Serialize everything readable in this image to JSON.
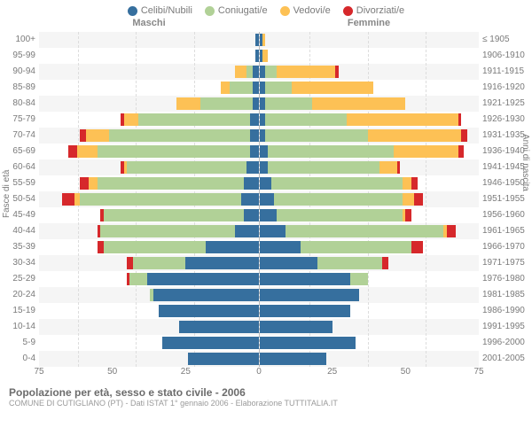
{
  "legend": {
    "items": [
      {
        "label": "Celibi/Nubili",
        "color": "#366f9e"
      },
      {
        "label": "Coniugati/e",
        "color": "#b1d197"
      },
      {
        "label": "Vedovi/e",
        "color": "#fdc155"
      },
      {
        "label": "Divorziati/e",
        "color": "#d6282b"
      }
    ]
  },
  "headers": {
    "male": "Maschi",
    "female": "Femmine"
  },
  "y_axis": {
    "left_title": "Fasce di età",
    "right_title": "Anni di nascita",
    "left_labels": [
      "100+",
      "95-99",
      "90-94",
      "85-89",
      "80-84",
      "75-79",
      "70-74",
      "65-69",
      "60-64",
      "55-59",
      "50-54",
      "45-49",
      "40-44",
      "35-39",
      "30-34",
      "25-29",
      "20-24",
      "15-19",
      "10-14",
      "5-9",
      "0-4"
    ],
    "right_labels": [
      "≤ 1905",
      "1906-1910",
      "1911-1915",
      "1916-1920",
      "1921-1925",
      "1926-1930",
      "1931-1935",
      "1936-1940",
      "1941-1945",
      "1946-1950",
      "1951-1955",
      "1956-1960",
      "1961-1965",
      "1966-1970",
      "1971-1975",
      "1976-1980",
      "1981-1985",
      "1986-1990",
      "1991-1995",
      "1996-2000",
      "2001-2005"
    ]
  },
  "x_axis": {
    "max": 75,
    "ticks": [
      75,
      50,
      25,
      0,
      25,
      50,
      75
    ]
  },
  "colors": {
    "celibi": "#366f9e",
    "coniugati": "#b1d197",
    "vedovi": "#fdc155",
    "divorziati": "#d6282b"
  },
  "data": {
    "male": [
      [
        1,
        0,
        0,
        0
      ],
      [
        1,
        0,
        0,
        0
      ],
      [
        2,
        2,
        4,
        0
      ],
      [
        2,
        8,
        3,
        0
      ],
      [
        2,
        18,
        8,
        0
      ],
      [
        3,
        38,
        5,
        1
      ],
      [
        3,
        48,
        8,
        2
      ],
      [
        3,
        52,
        7,
        3
      ],
      [
        4,
        41,
        1,
        1
      ],
      [
        5,
        50,
        3,
        3
      ],
      [
        6,
        55,
        2,
        4
      ],
      [
        5,
        48,
        0,
        1
      ],
      [
        8,
        46,
        0,
        1
      ],
      [
        18,
        35,
        0,
        2
      ],
      [
        25,
        18,
        0,
        2
      ],
      [
        38,
        6,
        0,
        1
      ],
      [
        36,
        1,
        0,
        0
      ],
      [
        34,
        0,
        0,
        0
      ],
      [
        27,
        0,
        0,
        0
      ],
      [
        33,
        0,
        0,
        0
      ],
      [
        24,
        0,
        0,
        0
      ]
    ],
    "female": [
      [
        1,
        0,
        1,
        0
      ],
      [
        1,
        0,
        2,
        0
      ],
      [
        2,
        4,
        20,
        1
      ],
      [
        2,
        9,
        28,
        0
      ],
      [
        2,
        16,
        32,
        0
      ],
      [
        2,
        28,
        38,
        1
      ],
      [
        2,
        35,
        32,
        2
      ],
      [
        3,
        43,
        22,
        2
      ],
      [
        3,
        38,
        6,
        1
      ],
      [
        4,
        45,
        3,
        2
      ],
      [
        5,
        44,
        4,
        3
      ],
      [
        6,
        43,
        1,
        2
      ],
      [
        9,
        54,
        1,
        3
      ],
      [
        14,
        38,
        0,
        4
      ],
      [
        20,
        22,
        0,
        2
      ],
      [
        31,
        6,
        0,
        0
      ],
      [
        34,
        0,
        0,
        0
      ],
      [
        31,
        0,
        0,
        0
      ],
      [
        25,
        0,
        0,
        0
      ],
      [
        33,
        0,
        0,
        0
      ],
      [
        23,
        0,
        0,
        0
      ]
    ]
  },
  "footer": {
    "title": "Popolazione per età, sesso e stato civile - 2006",
    "subtitle": "COMUNE DI CUTIGLIANO (PT) - Dati ISTAT 1° gennaio 2006 - Elaborazione TUTTITALIA.IT"
  }
}
